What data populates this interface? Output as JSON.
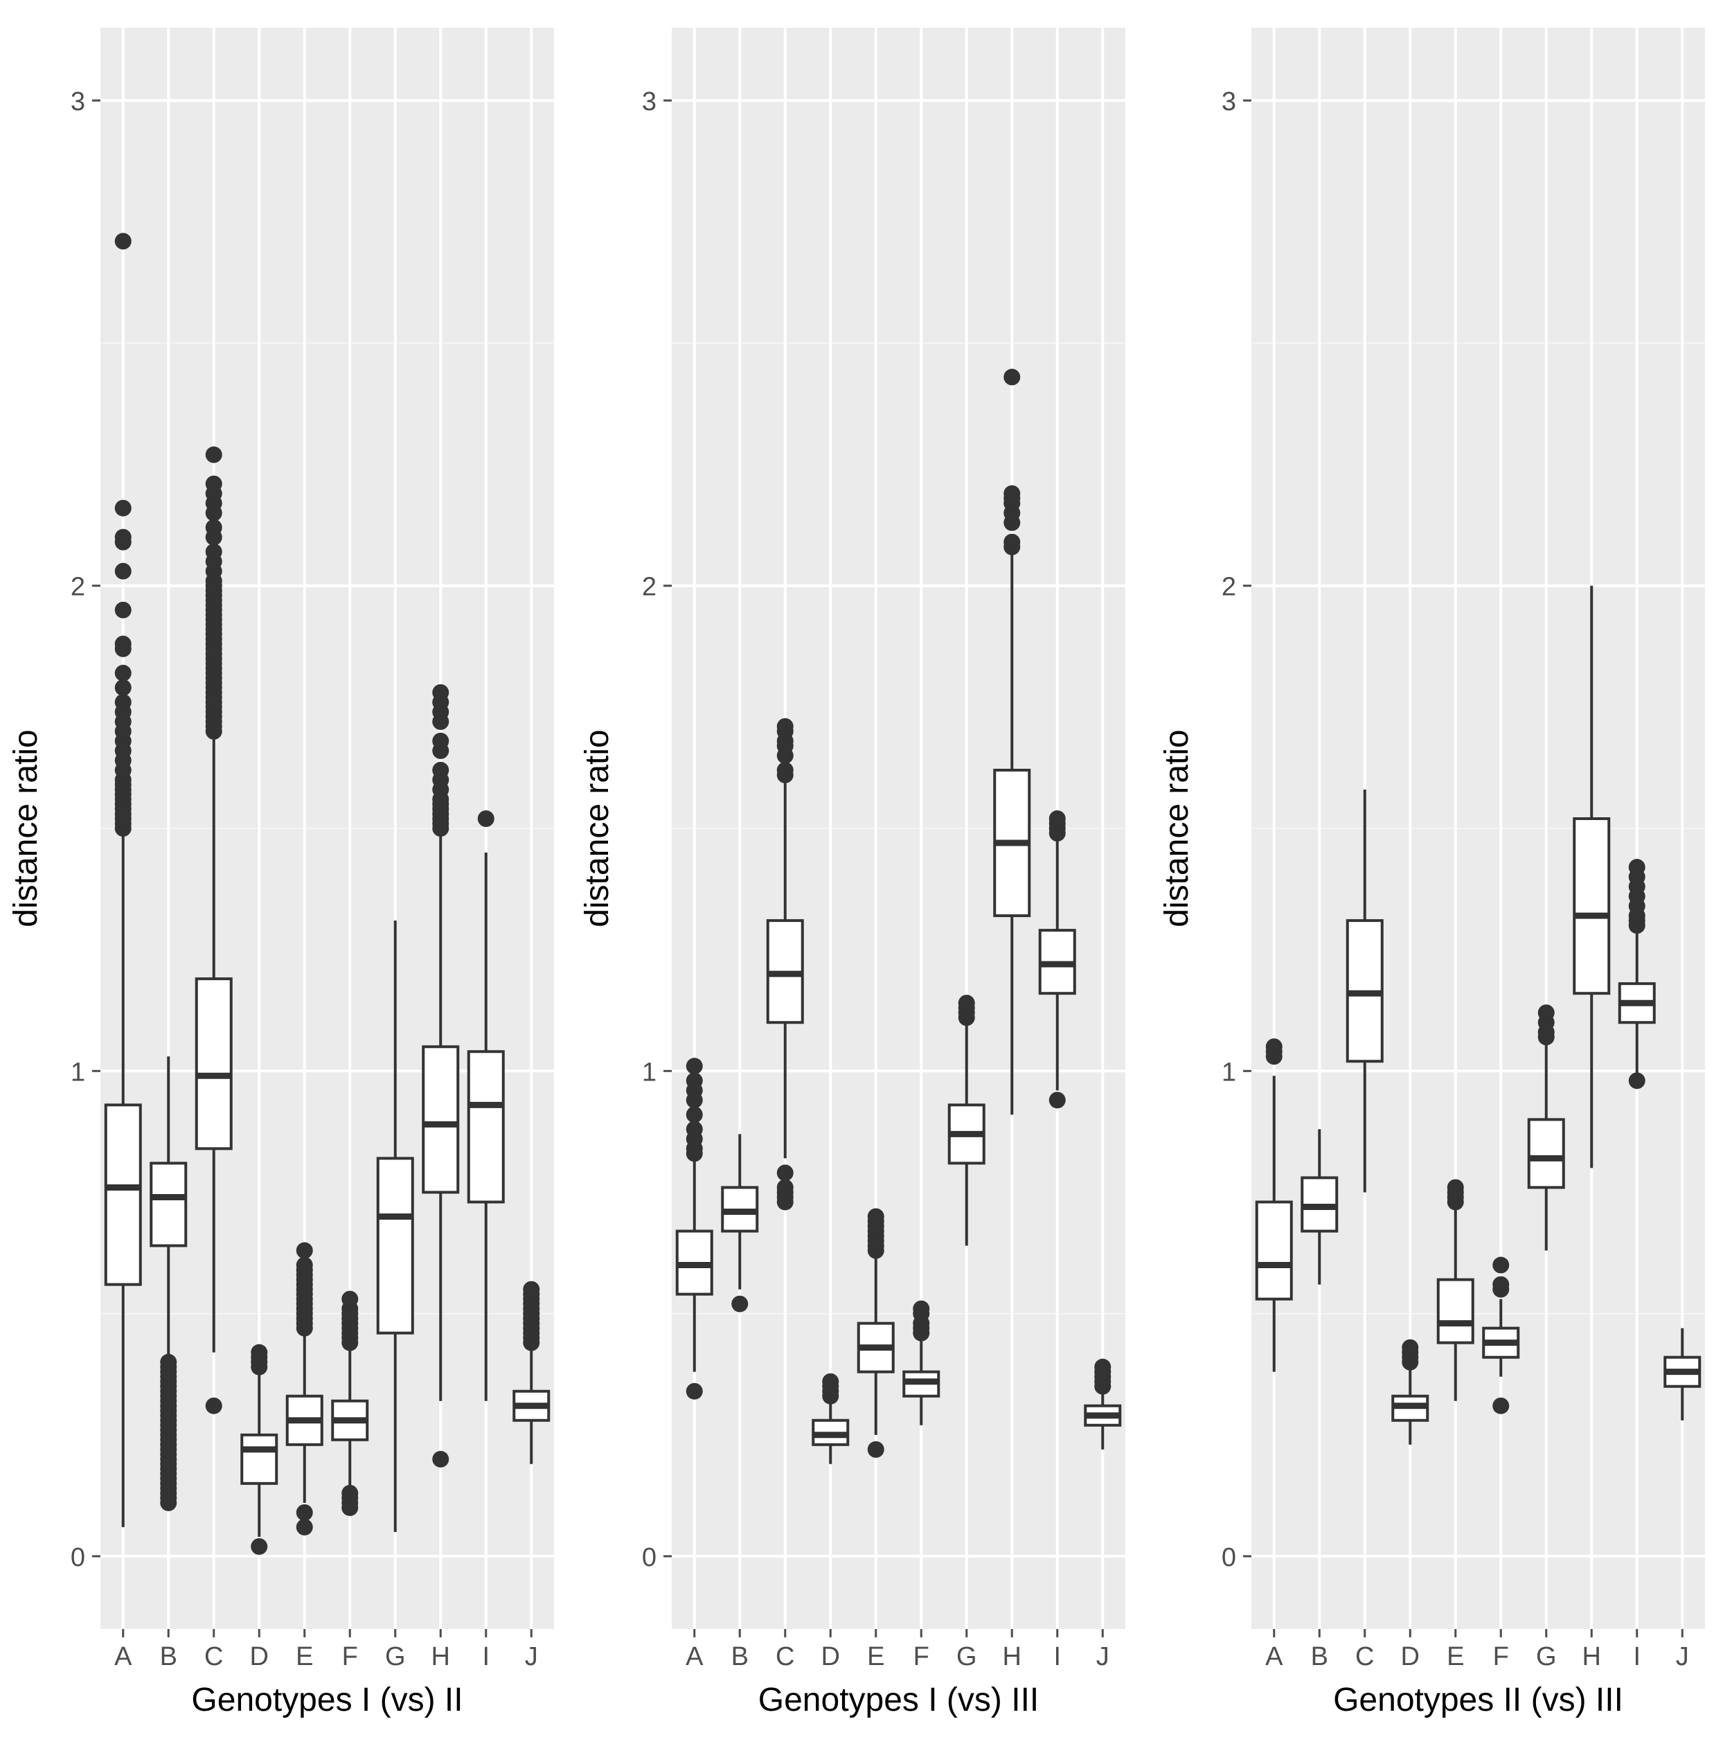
{
  "colors": {
    "panel_background": "#ebebeb",
    "grid_major": "#ffffff",
    "grid_minor": "#f5f5f5",
    "box_fill": "#ffffff",
    "box_stroke": "#333333",
    "outlier": "#333333",
    "axis_text": "#4d4d4d",
    "axis_title": "#000000"
  },
  "chart_data": [
    {
      "type": "boxplot",
      "title": "",
      "xlabel": "Genotypes I (vs) II",
      "ylabel": "distance ratio",
      "ylim": [
        -0.15,
        3.15
      ],
      "yticks": [
        0,
        1,
        2,
        3
      ],
      "ytick_labels": [
        "0",
        "1",
        "2",
        "3"
      ],
      "categories": [
        "A",
        "B",
        "C",
        "D",
        "E",
        "F",
        "G",
        "H",
        "I",
        "J"
      ],
      "boxes": [
        {
          "cat": "A",
          "lower_whisker": 0.06,
          "q1": 0.56,
          "median": 0.76,
          "q3": 0.93,
          "upper_whisker": 1.5,
          "outliers": [
            1.5,
            1.51,
            1.52,
            1.53,
            1.54,
            1.55,
            1.56,
            1.57,
            1.58,
            1.59,
            1.6,
            1.62,
            1.64,
            1.66,
            1.68,
            1.7,
            1.72,
            1.74,
            1.76,
            1.79,
            1.82,
            1.87,
            1.88,
            1.95,
            2.03,
            2.09,
            2.1,
            2.16,
            2.71
          ]
        },
        {
          "cat": "B",
          "lower_whisker": 0.4,
          "q1": 0.64,
          "median": 0.74,
          "q3": 0.81,
          "upper_whisker": 1.03,
          "outliers": [
            0.11,
            0.12,
            0.13,
            0.14,
            0.15,
            0.16,
            0.17,
            0.18,
            0.19,
            0.2,
            0.21,
            0.22,
            0.23,
            0.24,
            0.25,
            0.26,
            0.27,
            0.28,
            0.29,
            0.3,
            0.31,
            0.32,
            0.33,
            0.34,
            0.35,
            0.36,
            0.37,
            0.38,
            0.39,
            0.4
          ]
        },
        {
          "cat": "C",
          "lower_whisker": 0.42,
          "q1": 0.84,
          "median": 0.99,
          "q3": 1.19,
          "upper_whisker": 1.69,
          "outliers": [
            0.31,
            1.7,
            1.71,
            1.72,
            1.73,
            1.74,
            1.75,
            1.76,
            1.77,
            1.78,
            1.79,
            1.8,
            1.81,
            1.82,
            1.83,
            1.84,
            1.85,
            1.86,
            1.87,
            1.88,
            1.89,
            1.9,
            1.91,
            1.92,
            1.93,
            1.94,
            1.95,
            1.96,
            1.97,
            1.98,
            1.99,
            2.0,
            2.01,
            2.03,
            2.05,
            2.07,
            2.1,
            2.12,
            2.15,
            2.17,
            2.19,
            2.21,
            2.27
          ]
        },
        {
          "cat": "D",
          "lower_whisker": 0.04,
          "q1": 0.15,
          "median": 0.22,
          "q3": 0.25,
          "upper_whisker": 0.38,
          "outliers": [
            0.02,
            0.39,
            0.4,
            0.41,
            0.42
          ]
        },
        {
          "cat": "E",
          "lower_whisker": 0.11,
          "q1": 0.23,
          "median": 0.28,
          "q3": 0.33,
          "upper_whisker": 0.46,
          "outliers": [
            0.06,
            0.09,
            0.47,
            0.48,
            0.49,
            0.5,
            0.51,
            0.52,
            0.53,
            0.54,
            0.55,
            0.56,
            0.57,
            0.58,
            0.59,
            0.6,
            0.63
          ]
        },
        {
          "cat": "F",
          "lower_whisker": 0.14,
          "q1": 0.24,
          "median": 0.28,
          "q3": 0.32,
          "upper_whisker": 0.43,
          "outliers": [
            0.1,
            0.11,
            0.12,
            0.13,
            0.44,
            0.45,
            0.46,
            0.47,
            0.48,
            0.49,
            0.5,
            0.51,
            0.53
          ]
        },
        {
          "cat": "G",
          "lower_whisker": 0.05,
          "q1": 0.46,
          "median": 0.7,
          "q3": 0.82,
          "upper_whisker": 1.31,
          "outliers": []
        },
        {
          "cat": "H",
          "lower_whisker": 0.32,
          "q1": 0.75,
          "median": 0.89,
          "q3": 1.05,
          "upper_whisker": 1.5,
          "outliers": [
            0.2,
            1.5,
            1.51,
            1.52,
            1.53,
            1.54,
            1.55,
            1.56,
            1.58,
            1.6,
            1.62,
            1.66,
            1.68,
            1.72,
            1.74,
            1.76,
            1.78
          ]
        },
        {
          "cat": "I",
          "lower_whisker": 0.32,
          "q1": 0.73,
          "median": 0.93,
          "q3": 1.04,
          "upper_whisker": 1.45,
          "outliers": [
            1.52
          ]
        },
        {
          "cat": "J",
          "lower_whisker": 0.19,
          "q1": 0.28,
          "median": 0.31,
          "q3": 0.34,
          "upper_whisker": 0.43,
          "outliers": [
            0.44,
            0.45,
            0.46,
            0.47,
            0.48,
            0.49,
            0.5,
            0.51,
            0.52,
            0.53,
            0.54,
            0.55
          ]
        }
      ]
    },
    {
      "type": "boxplot",
      "title": "",
      "xlabel": "Genotypes I (vs) III",
      "ylabel": "distance ratio",
      "ylim": [
        -0.15,
        3.15
      ],
      "yticks": [
        0,
        1,
        2,
        3
      ],
      "ytick_labels": [
        "0",
        "1",
        "2",
        "3"
      ],
      "categories": [
        "A",
        "B",
        "C",
        "D",
        "E",
        "F",
        "G",
        "H",
        "I",
        "J"
      ],
      "boxes": [
        {
          "cat": "A",
          "lower_whisker": 0.38,
          "q1": 0.54,
          "median": 0.6,
          "q3": 0.67,
          "upper_whisker": 0.82,
          "outliers": [
            0.34,
            0.83,
            0.84,
            0.86,
            0.88,
            0.91,
            0.94,
            0.96,
            0.98,
            1.01
          ]
        },
        {
          "cat": "B",
          "lower_whisker": 0.55,
          "q1": 0.67,
          "median": 0.71,
          "q3": 0.76,
          "upper_whisker": 0.87,
          "outliers": [
            0.52
          ]
        },
        {
          "cat": "C",
          "lower_whisker": 0.82,
          "q1": 1.1,
          "median": 1.2,
          "q3": 1.31,
          "upper_whisker": 1.6,
          "outliers": [
            0.73,
            0.74,
            0.75,
            0.76,
            0.79,
            1.61,
            1.62,
            1.65,
            1.67,
            1.68,
            1.7,
            1.71
          ]
        },
        {
          "cat": "D",
          "lower_whisker": 0.19,
          "q1": 0.23,
          "median": 0.25,
          "q3": 0.28,
          "upper_whisker": 0.32,
          "outliers": [
            0.33,
            0.34,
            0.35,
            0.36
          ]
        },
        {
          "cat": "E",
          "lower_whisker": 0.25,
          "q1": 0.38,
          "median": 0.43,
          "q3": 0.48,
          "upper_whisker": 0.62,
          "outliers": [
            0.22,
            0.63,
            0.64,
            0.65,
            0.66,
            0.67,
            0.68,
            0.69,
            0.7
          ]
        },
        {
          "cat": "F",
          "lower_whisker": 0.27,
          "q1": 0.33,
          "median": 0.36,
          "q3": 0.38,
          "upper_whisker": 0.45,
          "outliers": [
            0.46,
            0.47,
            0.48,
            0.5,
            0.51
          ]
        },
        {
          "cat": "G",
          "lower_whisker": 0.64,
          "q1": 0.81,
          "median": 0.87,
          "q3": 0.93,
          "upper_whisker": 1.1,
          "outliers": [
            1.11,
            1.12,
            1.13,
            1.14
          ]
        },
        {
          "cat": "H",
          "lower_whisker": 0.91,
          "q1": 1.32,
          "median": 1.47,
          "q3": 1.62,
          "upper_whisker": 2.07,
          "outliers": [
            2.08,
            2.09,
            2.13,
            2.15,
            2.17,
            2.18,
            2.19,
            2.43
          ]
        },
        {
          "cat": "I",
          "lower_whisker": 0.96,
          "q1": 1.16,
          "median": 1.22,
          "q3": 1.29,
          "upper_whisker": 1.48,
          "outliers": [
            0.94,
            1.49,
            1.5,
            1.51,
            1.52
          ]
        },
        {
          "cat": "J",
          "lower_whisker": 0.22,
          "q1": 0.27,
          "median": 0.29,
          "q3": 0.31,
          "upper_whisker": 0.34,
          "outliers": [
            0.35,
            0.36,
            0.37,
            0.38,
            0.39
          ]
        }
      ]
    },
    {
      "type": "boxplot",
      "title": "",
      "xlabel": "Genotypes II (vs) III",
      "ylabel": "distance ratio",
      "ylim": [
        -0.15,
        3.15
      ],
      "yticks": [
        0,
        1,
        2,
        3
      ],
      "ytick_labels": [
        "0",
        "1",
        "2",
        "3"
      ],
      "categories": [
        "A",
        "B",
        "C",
        "D",
        "E",
        "F",
        "G",
        "H",
        "I",
        "J"
      ],
      "boxes": [
        {
          "cat": "A",
          "lower_whisker": 0.38,
          "q1": 0.53,
          "median": 0.6,
          "q3": 0.73,
          "upper_whisker": 0.99,
          "outliers": [
            1.03,
            1.04,
            1.05
          ]
        },
        {
          "cat": "B",
          "lower_whisker": 0.56,
          "q1": 0.67,
          "median": 0.72,
          "q3": 0.78,
          "upper_whisker": 0.88,
          "outliers": []
        },
        {
          "cat": "C",
          "lower_whisker": 0.75,
          "q1": 1.02,
          "median": 1.16,
          "q3": 1.31,
          "upper_whisker": 1.58,
          "outliers": []
        },
        {
          "cat": "D",
          "lower_whisker": 0.23,
          "q1": 0.28,
          "median": 0.31,
          "q3": 0.33,
          "upper_whisker": 0.39,
          "outliers": [
            0.4,
            0.41,
            0.42,
            0.43
          ]
        },
        {
          "cat": "E",
          "lower_whisker": 0.32,
          "q1": 0.44,
          "median": 0.48,
          "q3": 0.57,
          "upper_whisker": 0.72,
          "outliers": [
            0.73,
            0.74,
            0.75,
            0.76
          ]
        },
        {
          "cat": "F",
          "lower_whisker": 0.37,
          "q1": 0.41,
          "median": 0.44,
          "q3": 0.47,
          "upper_whisker": 0.53,
          "outliers": [
            0.31,
            0.55,
            0.56,
            0.6
          ]
        },
        {
          "cat": "G",
          "lower_whisker": 0.63,
          "q1": 0.76,
          "median": 0.82,
          "q3": 0.9,
          "upper_whisker": 1.06,
          "outliers": [
            1.07,
            1.08,
            1.1,
            1.12
          ]
        },
        {
          "cat": "H",
          "lower_whisker": 0.8,
          "q1": 1.16,
          "median": 1.32,
          "q3": 1.52,
          "upper_whisker": 2.0,
          "outliers": []
        },
        {
          "cat": "I",
          "lower_whisker": 0.99,
          "q1": 1.1,
          "median": 1.14,
          "q3": 1.18,
          "upper_whisker": 1.29,
          "outliers": [
            0.98,
            1.3,
            1.31,
            1.32,
            1.34,
            1.36,
            1.38,
            1.4,
            1.42
          ]
        },
        {
          "cat": "J",
          "lower_whisker": 0.28,
          "q1": 0.35,
          "median": 0.38,
          "q3": 0.41,
          "upper_whisker": 0.47,
          "outliers": []
        }
      ]
    }
  ]
}
